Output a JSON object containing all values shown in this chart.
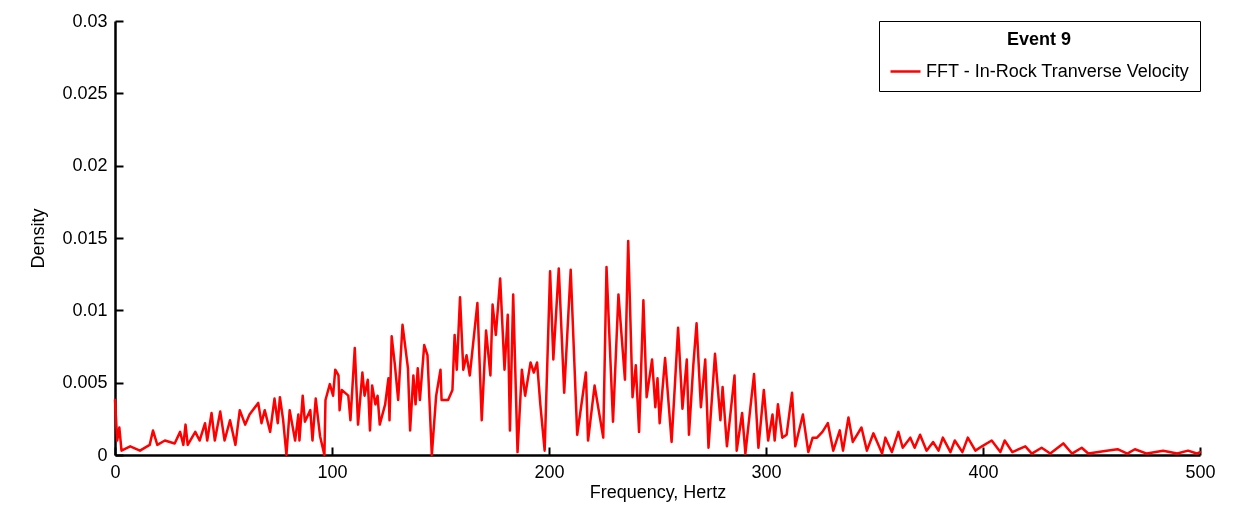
{
  "chart_data": {
    "type": "line",
    "xlabel": "Frequency, Hertz",
    "ylabel": "Density",
    "legend_title": "Event 9",
    "x": [
      0,
      1,
      2,
      3,
      7,
      11.5,
      16,
      17.5,
      19.5,
      23,
      27.5,
      30,
      31.5,
      32.5,
      33.5,
      37,
      39,
      41.5,
      42.5,
      44.5,
      46,
      48.5,
      50.5,
      53,
      55.5,
      57.5,
      60,
      62,
      66,
      67.5,
      69,
      71.5,
      73.5,
      75,
      76,
      77.5,
      79,
      80.5,
      83,
      84.5,
      85,
      86.5,
      87.5,
      90,
      91,
      92.5,
      94.5,
      96.5,
      97,
      99,
      100.5,
      101.5,
      103,
      103.5,
      104.5,
      107.5,
      108.5,
      110.5,
      112,
      114,
      115,
      116.5,
      117.5,
      118.5,
      120,
      121,
      122,
      124.5,
      126,
      126.5,
      127.5,
      129,
      130.5,
      132.5,
      135,
      136,
      137.5,
      138.5,
      139.5,
      140.5,
      142.5,
      144,
      146,
      148,
      150,
      150.5,
      153.5,
      155.5,
      156.5,
      157.5,
      159,
      160.5,
      162,
      163.5,
      167,
      169,
      171,
      173,
      174,
      175.5,
      177.5,
      179.5,
      181,
      182,
      183.5,
      185.5,
      187.5,
      189,
      191.5,
      193,
      194.5,
      196,
      198,
      200.5,
      202,
      204.5,
      207,
      210,
      213,
      217,
      218,
      221,
      225,
      226.5,
      229.5,
      232,
      235,
      236.5,
      238.5,
      240,
      241.5,
      243.5,
      245,
      247.5,
      249,
      250,
      251,
      253.5,
      256.5,
      258,
      259.5,
      261.5,
      263.5,
      264.5,
      266.5,
      268,
      270,
      272,
      273.5,
      276.5,
      279,
      280,
      282,
      285.5,
      286.5,
      289,
      290.5,
      294.5,
      296.5,
      299,
      301,
      303,
      304,
      305.5,
      307.5,
      309.5,
      312,
      313.5,
      317,
      319.5,
      321.5,
      323.5,
      326,
      328.5,
      331,
      334,
      335.5,
      338,
      340,
      344,
      346.5,
      349.5,
      353.5,
      355,
      358,
      361,
      363,
      366.5,
      368.5,
      371,
      374,
      377,
      379.5,
      381.5,
      385,
      387,
      390.5,
      393,
      396.5,
      399.5,
      404,
      408,
      410,
      413.5,
      419.5,
      422.5,
      427,
      431,
      437,
      441,
      445.5,
      448.5,
      457,
      462,
      466.5,
      470,
      475.5,
      483,
      489.5,
      494.5,
      498.5,
      500
    ],
    "series": [
      {
        "name": "FFT - In-Rock Tranverse Velocity",
        "color": "#ff0000",
        "values": [
          0.0038,
          0.001,
          0.0019,
          0.0003,
          0.0006,
          0.0003,
          0.0007,
          0.0017,
          0.0007,
          0.001,
          0.0008,
          0.0016,
          0.0007,
          0.0021,
          0.0007,
          0.0016,
          0.001,
          0.0022,
          0.001,
          0.0029,
          0.001,
          0.003,
          0.001,
          0.0024,
          0.0007,
          0.0031,
          0.0021,
          0.0028,
          0.0036,
          0.0022,
          0.0031,
          0.0016,
          0.0039,
          0.0022,
          0.004,
          0.0024,
          0,
          0.0031,
          0.001,
          0.0028,
          0.001,
          0.0041,
          0.0023,
          0.0031,
          0.001,
          0.0039,
          0.0013,
          0,
          0.0038,
          0.0049,
          0.0041,
          0.0059,
          0.0055,
          0.0031,
          0.0045,
          0.0041,
          0.0024,
          0.0074,
          0.0021,
          0.0057,
          0.0041,
          0.0052,
          0.0017,
          0.0048,
          0.0035,
          0.0041,
          0.0021,
          0.0035,
          0.0053,
          0.0024,
          0.0082,
          0.0062,
          0.0038,
          0.009,
          0.006,
          0.0017,
          0.0055,
          0.0035,
          0.006,
          0.0038,
          0.0076,
          0.0069,
          0,
          0.0041,
          0.0059,
          0.0038,
          0.0038,
          0.0045,
          0.0083,
          0.0059,
          0.0109,
          0.0059,
          0.0069,
          0.0055,
          0.0105,
          0.0024,
          0.0086,
          0.0055,
          0.0104,
          0.0083,
          0.0122,
          0.0059,
          0.0097,
          0.0017,
          0.0111,
          0.0002,
          0.0059,
          0.0041,
          0.0064,
          0.0057,
          0.0064,
          0.0035,
          0.0003,
          0.0127,
          0.0066,
          0.0129,
          0.0043,
          0.0128,
          0.0014,
          0.0057,
          0.001,
          0.0048,
          0.0012,
          0.013,
          0.0023,
          0.0111,
          0.0052,
          0.0148,
          0.004,
          0.0062,
          0.0016,
          0.0107,
          0.004,
          0.0066,
          0.0033,
          0.0053,
          0.0022,
          0.0067,
          0.0009,
          0.0048,
          0.0088,
          0.0032,
          0.0066,
          0.0014,
          0.0062,
          0.0091,
          0.0033,
          0.0066,
          0.0005,
          0.007,
          0.0024,
          0.0047,
          0.0006,
          0.0055,
          0.0003,
          0.0029,
          0.0001,
          0.0056,
          0.0005,
          0.0045,
          0.001,
          0.0028,
          0.001,
          0.0035,
          0.0012,
          0.0014,
          0.0043,
          0.0006,
          0.0028,
          0.0002,
          0.0012,
          0.0012,
          0.0016,
          0.0022,
          0.0003,
          0.0017,
          0.0003,
          0.0026,
          0.0009,
          0.0019,
          0.0003,
          0.0015,
          0.0001,
          0.0012,
          0.0002,
          0.0016,
          0.0005,
          0.0012,
          0.0005,
          0.0014,
          0.0003,
          0.0009,
          0.0003,
          0.0012,
          0.0002,
          0.001,
          0.0002,
          0.0012,
          0.0003,
          0.0006,
          0.001,
          0.0002,
          0.001,
          0.0002,
          0.0006,
          0.0001,
          0.0005,
          0.0001,
          0.0008,
          0.0001,
          0.0005,
          0.0001,
          0.0003,
          0.0004,
          0.0001,
          0.0004,
          0.0001,
          0.0003,
          0.0001,
          0.0003,
          0.0001,
          0.0002
        ]
      }
    ],
    "xlim": [
      0,
      500
    ],
    "xticks": [
      0,
      100,
      200,
      300,
      400,
      500
    ],
    "ylim": [
      0,
      0.03
    ],
    "yticks": [
      0,
      0.005,
      0.01,
      0.015,
      0.02,
      0.025,
      0.03
    ],
    "grid": false,
    "legend": "top right",
    "marker": "none",
    "line_style": "solid"
  }
}
